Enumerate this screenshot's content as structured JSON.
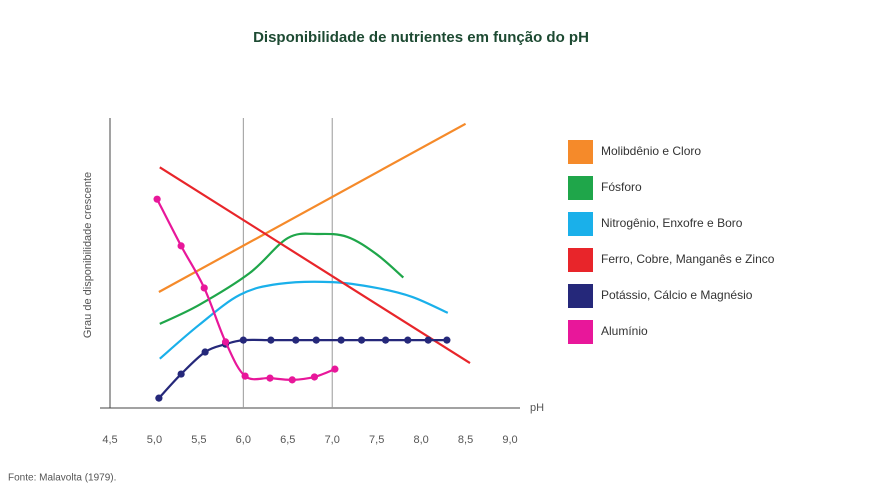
{
  "chart_data": {
    "type": "line",
    "title": "Disponibilidade de nutrientes em função do pH",
    "x_label": "pH",
    "y_label": "Grau de disponibilidade crescente",
    "source": "Fonte: Malavolta (1979).",
    "xlim": [
      4.5,
      9.0
    ],
    "ylim": [
      0,
      100
    ],
    "xticks": [
      {
        "value": 4.5,
        "label": "4,5"
      },
      {
        "value": 5.0,
        "label": "5,0"
      },
      {
        "value": 5.5,
        "label": "5,5"
      },
      {
        "value": 6.0,
        "label": "6,0"
      },
      {
        "value": 6.5,
        "label": "6,5"
      },
      {
        "value": 7.0,
        "label": "7,0"
      },
      {
        "value": 7.5,
        "label": "7,5"
      },
      {
        "value": 8.0,
        "label": "8,0"
      },
      {
        "value": 8.5,
        "label": "8,5"
      },
      {
        "value": 9.0,
        "label": "9,0"
      }
    ],
    "x_gridlines": [
      6.0,
      7.0
    ],
    "legend_position": "right",
    "series": [
      {
        "name": "Molibdênio e Cloro",
        "color": "#f58a2a",
        "smooth": false,
        "markers": false,
        "x": [
          5.05,
          8.5
        ],
        "values": [
          40,
          98
        ]
      },
      {
        "name": "Fósforo",
        "color": "#1fa64a",
        "smooth": true,
        "markers": false,
        "x": [
          5.06,
          5.5,
          6.07,
          6.5,
          6.84,
          7.17,
          7.5,
          7.8
        ],
        "values": [
          29,
          35.5,
          46.5,
          58.6,
          60,
          59,
          53,
          45
        ]
      },
      {
        "name": "Nitrogênio, Enxofre e Boro",
        "color": "#1ab0ea",
        "smooth": true,
        "markers": false,
        "x": [
          5.06,
          5.5,
          5.96,
          6.4,
          7.0,
          7.5,
          7.9,
          8.3
        ],
        "values": [
          17,
          28.6,
          39,
          42.8,
          43.4,
          41.4,
          38.3,
          32.8
        ]
      },
      {
        "name": "Ferro, Cobre, Manganês e Zinco",
        "color": "#e8252a",
        "smooth": false,
        "markers": false,
        "x": [
          5.06,
          8.55
        ],
        "values": [
          83,
          15.5
        ]
      },
      {
        "name": "Potássio, Cálcio e Magnésio",
        "color": "#25287a",
        "smooth": true,
        "markers": true,
        "x": [
          5.05,
          5.3,
          5.57,
          5.8,
          6.0,
          6.31,
          6.59,
          6.82,
          7.1,
          7.33,
          7.6,
          7.85,
          8.08,
          8.29
        ],
        "values": [
          3.4,
          11.7,
          19.3,
          22,
          23.4,
          23.4,
          23.4,
          23.4,
          23.4,
          23.4,
          23.4,
          23.4,
          23.4,
          23.4
        ]
      },
      {
        "name": "Alumínio",
        "color": "#e8179a",
        "smooth": true,
        "markers": true,
        "x": [
          5.03,
          5.3,
          5.56,
          5.8,
          6.02,
          6.3,
          6.55,
          6.8,
          7.03
        ],
        "values": [
          72,
          55.9,
          41.4,
          22.8,
          11,
          10.3,
          9.7,
          10.7,
          13.4
        ]
      }
    ]
  }
}
